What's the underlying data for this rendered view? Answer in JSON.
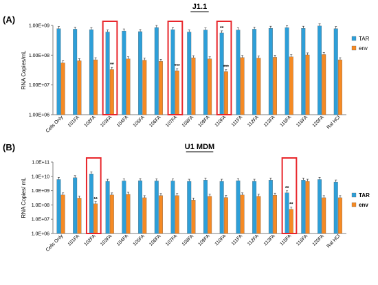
{
  "colors": {
    "tar": "#2e9fd8",
    "env": "#f58a24",
    "highlight": "#e8262b",
    "axis": "#7f7f7f"
  },
  "chart_data": [
    {
      "panel_label": "(A)",
      "type": "bar",
      "title": "J1.1",
      "ylabel": "RNA Copies/mL",
      "yscale": "log",
      "ylim": [
        1000000,
        1000000000
      ],
      "yticks": [
        "1.00E+06",
        "1.00E+07",
        "1.00E+08",
        "1.00E+09"
      ],
      "grid": false,
      "legend": "right",
      "categories": [
        "Cells Only",
        "101FA",
        "102FA",
        "103FA",
        "104FA",
        "105FA",
        "106FA",
        "107FA",
        "108FA",
        "109FA",
        "110FA",
        "111FA",
        "112FA",
        "113FA",
        "115FA",
        "116FA",
        "120FA",
        "Ral HCl"
      ],
      "series": [
        {
          "name": "TAR",
          "values": [
            780000000,
            750000000,
            720000000,
            600000000,
            650000000,
            620000000,
            850000000,
            720000000,
            600000000,
            700000000,
            560000000,
            700000000,
            750000000,
            800000000,
            840000000,
            800000000,
            960000000,
            780000000
          ]
        },
        {
          "name": "env",
          "values": [
            55000000,
            65000000,
            70000000,
            33000000,
            75000000,
            68000000,
            62000000,
            30000000,
            82000000,
            75000000,
            28000000,
            83000000,
            80000000,
            85000000,
            88000000,
            102000000,
            105000000,
            70000000
          ]
        }
      ],
      "annotations": [
        {
          "category": "103FA",
          "series": "env",
          "text": "**"
        },
        {
          "category": "107FA",
          "series": "env",
          "text": "***"
        },
        {
          "category": "110FA",
          "series": "TAR",
          "text": "**"
        },
        {
          "category": "110FA",
          "series": "env",
          "text": "***"
        }
      ],
      "highlighted_categories": [
        "103FA",
        "107FA",
        "110FA"
      ]
    },
    {
      "panel_label": "(B)",
      "type": "bar",
      "title": "U1 MDM",
      "ylabel": "RNA Copies/ mL",
      "yscale": "log",
      "ylim": [
        1000000,
        100000000000
      ],
      "yticks": [
        "1.0E+06",
        "1.0E+07",
        "1.0E+08",
        "1.0E+09",
        "1.0E+10",
        "1.0E+11"
      ],
      "grid": false,
      "legend": "right",
      "categories": [
        "Cells Only",
        "101FA",
        "102FA",
        "103FA",
        "104FA",
        "105FA",
        "106FA",
        "107FA",
        "108FA",
        "109FA",
        "110FA",
        "111FA",
        "112FA",
        "113FA",
        "115FA",
        "116FA",
        "120FA",
        "Ral HCl"
      ],
      "series": [
        {
          "name": "TAR",
          "values": [
            6000000000,
            8000000000,
            15000000000,
            4500000000,
            4800000000,
            5000000000,
            4800000000,
            4800000000,
            4500000000,
            5500000000,
            4500000000,
            5000000000,
            4500000000,
            5500000000,
            700000000,
            5500000000,
            6000000000,
            4000000000
          ]
        },
        {
          "name": "env",
          "values": [
            500000000,
            300000000,
            120000000,
            500000000,
            550000000,
            320000000,
            450000000,
            450000000,
            220000000,
            400000000,
            330000000,
            500000000,
            400000000,
            480000000,
            50000000,
            4500000000,
            320000000,
            320000000
          ]
        }
      ],
      "annotations": [
        {
          "category": "102FA",
          "series": "env",
          "text": "**"
        },
        {
          "category": "115FA",
          "series": "TAR",
          "text": "**"
        },
        {
          "category": "115FA",
          "series": "env",
          "text": "**"
        }
      ],
      "highlighted_categories": [
        "102FA",
        "115FA"
      ]
    }
  ]
}
